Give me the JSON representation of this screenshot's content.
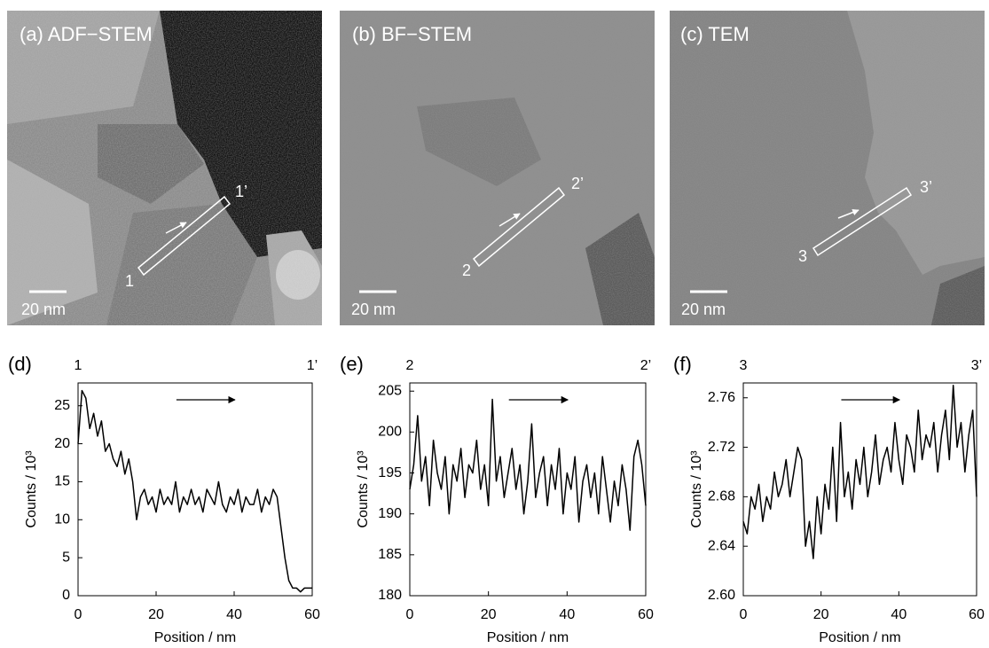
{
  "images": [
    {
      "label": "(a) ADF−STEM",
      "scale_bar": "20 nm",
      "start": "1",
      "end": "1’"
    },
    {
      "label": "(b) BF−STEM",
      "scale_bar": "20 nm",
      "start": "2",
      "end": "2’"
    },
    {
      "label": "(c) TEM",
      "scale_bar": "20 nm",
      "start": "3",
      "end": "3’"
    }
  ],
  "chart_data": [
    {
      "type": "line",
      "panel_label": "(d)",
      "start_label": "1",
      "end_label": "1’",
      "x_label": "Position / nm",
      "y_label": "Counts / 10³",
      "color": "#000000",
      "xlim": [
        0,
        60
      ],
      "xticks": [
        0,
        20,
        40,
        60
      ],
      "ylim": [
        0,
        28
      ],
      "yticks": [
        0,
        5,
        10,
        15,
        20,
        25
      ],
      "x": [
        0,
        1,
        2,
        3,
        4,
        5,
        6,
        7,
        8,
        9,
        10,
        11,
        12,
        13,
        14,
        15,
        16,
        17,
        18,
        19,
        20,
        21,
        22,
        23,
        24,
        25,
        26,
        27,
        28,
        29,
        30,
        31,
        32,
        33,
        34,
        35,
        36,
        37,
        38,
        39,
        40,
        41,
        42,
        43,
        44,
        45,
        46,
        47,
        48,
        49,
        50,
        51,
        52,
        53,
        54,
        55,
        56,
        57,
        58,
        59,
        60
      ],
      "values": [
        20,
        27,
        26,
        22,
        24,
        21,
        23,
        19,
        20,
        18,
        17,
        19,
        16,
        18,
        15,
        10,
        13,
        14,
        12,
        13,
        11,
        14,
        12,
        13,
        12,
        15,
        11,
        13,
        12,
        14,
        12,
        13,
        11,
        14,
        13,
        12,
        15,
        12,
        11,
        13,
        12,
        14,
        11,
        13,
        12,
        12,
        14,
        11,
        13,
        12,
        14,
        13,
        9,
        5,
        2,
        1,
        1,
        0.5,
        1,
        1,
        1
      ]
    },
    {
      "type": "line",
      "panel_label": "(e)",
      "start_label": "2",
      "end_label": "2’",
      "x_label": "Position / nm",
      "y_label": "Counts / 10³",
      "color": "#000000",
      "xlim": [
        0,
        60
      ],
      "xticks": [
        0,
        20,
        40,
        60
      ],
      "ylim": [
        180,
        206
      ],
      "yticks": [
        180,
        185,
        190,
        195,
        200,
        205
      ],
      "x": [
        0,
        1,
        2,
        3,
        4,
        5,
        6,
        7,
        8,
        9,
        10,
        11,
        12,
        13,
        14,
        15,
        16,
        17,
        18,
        19,
        20,
        21,
        22,
        23,
        24,
        25,
        26,
        27,
        28,
        29,
        30,
        31,
        32,
        33,
        34,
        35,
        36,
        37,
        38,
        39,
        40,
        41,
        42,
        43,
        44,
        45,
        46,
        47,
        48,
        49,
        50,
        51,
        52,
        53,
        54,
        55,
        56,
        57,
        58,
        59,
        60
      ],
      "values": [
        193,
        196,
        202,
        194,
        197,
        191,
        199,
        195,
        193,
        197,
        190,
        196,
        194,
        198,
        192,
        196,
        195,
        199,
        193,
        196,
        191,
        204,
        194,
        197,
        192,
        195,
        198,
        193,
        196,
        190,
        194,
        201,
        192,
        195,
        197,
        191,
        196,
        193,
        198,
        190,
        195,
        193,
        197,
        189,
        194,
        196,
        192,
        195,
        190,
        197,
        193,
        189,
        194,
        191,
        196,
        193,
        188,
        197,
        199,
        196,
        191
      ]
    },
    {
      "type": "line",
      "panel_label": "(f)",
      "start_label": "3",
      "end_label": "3’",
      "x_label": "Position / nm",
      "y_label": "Counts / 10³",
      "color": "#000000",
      "xlim": [
        0,
        60
      ],
      "xticks": [
        0,
        20,
        40,
        60
      ],
      "ylim": [
        2.6,
        2.772
      ],
      "yticks": [
        {
          "value": 2.6,
          "label": "2.60"
        },
        2.64,
        2.68,
        2.72,
        2.76
      ],
      "x": [
        0,
        1,
        2,
        3,
        4,
        5,
        6,
        7,
        8,
        9,
        10,
        11,
        12,
        13,
        14,
        15,
        16,
        17,
        18,
        19,
        20,
        21,
        22,
        23,
        24,
        25,
        26,
        27,
        28,
        29,
        30,
        31,
        32,
        33,
        34,
        35,
        36,
        37,
        38,
        39,
        40,
        41,
        42,
        43,
        44,
        45,
        46,
        47,
        48,
        49,
        50,
        51,
        52,
        53,
        54,
        55,
        56,
        57,
        58,
        59,
        60
      ],
      "values": [
        2.66,
        2.65,
        2.68,
        2.67,
        2.69,
        2.66,
        2.68,
        2.67,
        2.7,
        2.68,
        2.69,
        2.71,
        2.68,
        2.7,
        2.72,
        2.71,
        2.64,
        2.66,
        2.63,
        2.68,
        2.65,
        2.69,
        2.67,
        2.72,
        2.66,
        2.74,
        2.68,
        2.7,
        2.67,
        2.71,
        2.69,
        2.72,
        2.68,
        2.7,
        2.73,
        2.69,
        2.71,
        2.72,
        2.7,
        2.74,
        2.71,
        2.69,
        2.73,
        2.72,
        2.7,
        2.75,
        2.71,
        2.73,
        2.72,
        2.74,
        2.7,
        2.73,
        2.75,
        2.71,
        2.77,
        2.72,
        2.74,
        2.7,
        2.73,
        2.75,
        2.68
      ]
    }
  ]
}
